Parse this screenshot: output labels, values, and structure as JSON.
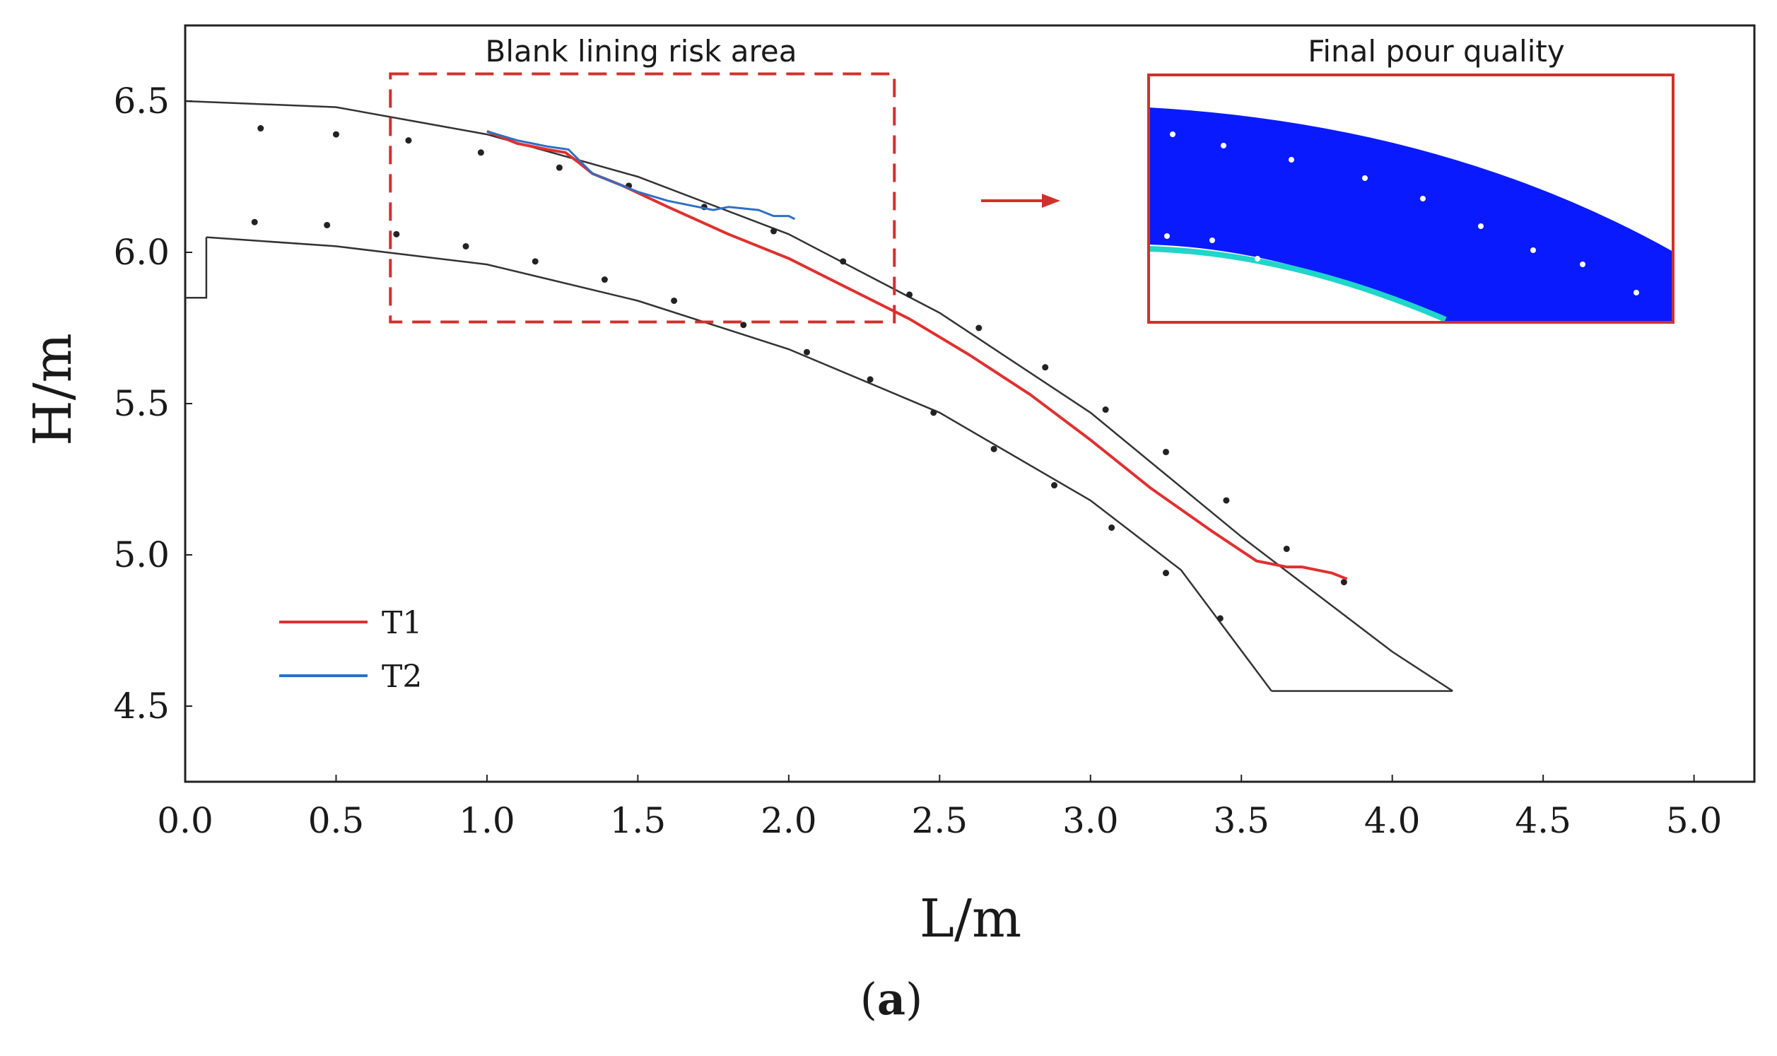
{
  "chart_data": {
    "type": "line",
    "xlabel": "L/m",
    "ylabel": "H/m",
    "xlim": [
      0,
      5.2
    ],
    "ylim": [
      4.25,
      6.75
    ],
    "xticks": [
      "0.0",
      "0.5",
      "1.0",
      "1.5",
      "2.0",
      "2.5",
      "3.0",
      "3.5",
      "4.0",
      "4.5",
      "5.0"
    ],
    "yticks": [
      "4.5",
      "5.0",
      "5.5",
      "6.0",
      "6.5"
    ],
    "series": [
      {
        "name": "T1",
        "color": "#e03030",
        "x": [
          1.0,
          1.1,
          1.2,
          1.26,
          1.3,
          1.35,
          1.45,
          1.6,
          1.8,
          2.0,
          2.2,
          2.4,
          2.6,
          2.8,
          3.0,
          3.2,
          3.4,
          3.55,
          3.65,
          3.7,
          3.8,
          3.85
        ],
        "y": [
          6.4,
          6.36,
          6.34,
          6.33,
          6.3,
          6.26,
          6.22,
          6.15,
          6.06,
          5.98,
          5.88,
          5.78,
          5.66,
          5.53,
          5.38,
          5.22,
          5.08,
          4.98,
          4.96,
          4.96,
          4.94,
          4.92
        ]
      },
      {
        "name": "T2",
        "color": "#2f6fc4",
        "x": [
          1.0,
          1.1,
          1.2,
          1.27,
          1.31,
          1.35,
          1.4,
          1.5,
          1.6,
          1.7,
          1.75,
          1.8,
          1.9,
          1.95,
          2.0,
          2.02
        ],
        "y": [
          6.4,
          6.37,
          6.35,
          6.34,
          6.3,
          6.26,
          6.24,
          6.2,
          6.17,
          6.15,
          6.14,
          6.15,
          6.14,
          6.12,
          6.12,
          6.11
        ]
      }
    ],
    "outline": {
      "outer": {
        "x": [
          0.0,
          0.5,
          1.0,
          1.5,
          2.0,
          2.5,
          3.0,
          3.5,
          4.0,
          4.2
        ],
        "y": [
          6.5,
          6.48,
          6.39,
          6.25,
          6.06,
          5.8,
          5.47,
          5.06,
          4.68,
          4.55
        ]
      },
      "inner": {
        "x": [
          0.07,
          0.5,
          1.0,
          1.5,
          2.0,
          2.5,
          3.0,
          3.3,
          3.6
        ],
        "y": [
          6.05,
          6.02,
          5.96,
          5.84,
          5.68,
          5.47,
          5.18,
          4.95,
          4.55
        ]
      },
      "base": {
        "x": [
          3.6,
          4.2
        ],
        "y": [
          4.55,
          4.55
        ]
      },
      "step": {
        "x": [
          0.0,
          0.07,
          0.07
        ],
        "y": [
          5.85,
          5.85,
          6.05
        ]
      }
    },
    "markers": {
      "x": [
        0.25,
        0.5,
        0.74,
        0.98,
        1.24,
        1.47,
        1.72,
        1.95,
        2.18,
        2.4,
        2.63,
        2.85,
        3.05,
        3.25,
        3.45,
        3.65,
        3.84,
        0.23,
        0.47,
        0.7,
        0.93,
        1.16,
        1.39,
        1.62,
        1.85,
        2.06,
        2.27,
        2.48,
        2.68,
        2.88,
        3.07,
        3.25,
        3.43
      ],
      "y": [
        6.41,
        6.39,
        6.37,
        6.33,
        6.28,
        6.22,
        6.15,
        6.07,
        5.97,
        5.86,
        5.75,
        5.62,
        5.48,
        5.34,
        5.18,
        5.02,
        4.91,
        6.1,
        6.09,
        6.06,
        6.02,
        5.97,
        5.91,
        5.84,
        5.76,
        5.67,
        5.58,
        5.47,
        5.35,
        5.23,
        5.09,
        4.94,
        4.79
      ]
    },
    "risk_area": {
      "x": [
        0.68,
        2.35
      ],
      "y": [
        5.77,
        6.59
      ]
    },
    "legend_position": "bottom-left",
    "grid": false
  },
  "annotations": {
    "risk_area": "Blank lining risk area",
    "inset_title": "Final pour quality"
  },
  "caption": {
    "open": "(",
    "letter": "a",
    "close": ")"
  },
  "colors": {
    "accent": "#d0312d",
    "inset_fill": "#0a1aff",
    "inset_edge": "#1fd6c8"
  }
}
